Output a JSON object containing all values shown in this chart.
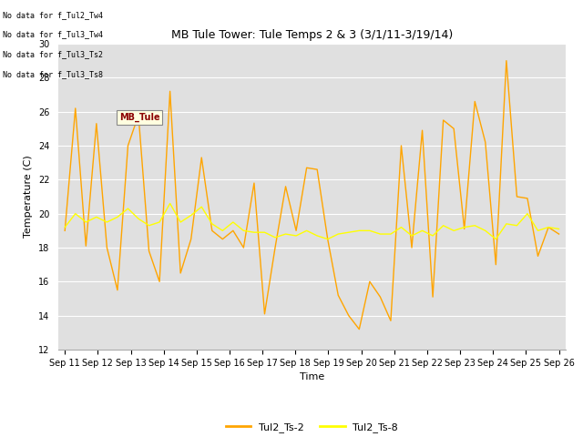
{
  "title": "MB Tule Tower: Tule Temps 2 & 3 (3/1/11-3/19/14)",
  "xlabel": "Time",
  "ylabel": "Temperature (C)",
  "ylim": [
    12,
    30
  ],
  "yticks": [
    12,
    14,
    16,
    18,
    20,
    22,
    24,
    26,
    28,
    30
  ],
  "background_color": "#ffffff",
  "plot_bg_color": "#e0e0e0",
  "line1_color": "#FFA500",
  "line2_color": "#FFFF00",
  "line1_label": "Tul2_Ts-2",
  "line2_label": "Tul2_Ts-8",
  "annotations": [
    "No data for f_Tul2_Tw4",
    "No data for f_Tul3_Tw4",
    "No data for f_Tul3_Ts2",
    "No data for f_Tul3_Ts8"
  ],
  "tooltip_text": "MB_Tule",
  "xtick_labels": [
    "Sep 11",
    "Sep 12",
    "Sep 13",
    "Sep 14",
    "Sep 15",
    "Sep 16",
    "Sep 17",
    "Sep 18",
    "Sep 19",
    "Sep 20",
    "Sep 21",
    "Sep 22",
    "Sep 23",
    "Sep 24",
    "Sep 25",
    "Sep 26"
  ],
  "ts2_y": [
    19.0,
    26.2,
    18.1,
    25.3,
    18.0,
    15.5,
    24.0,
    25.8,
    17.8,
    16.0,
    27.2,
    16.5,
    18.5,
    23.3,
    19.0,
    18.5,
    19.0,
    18.0,
    21.8,
    14.1,
    18.0,
    21.6,
    19.0,
    22.7,
    22.6,
    18.5,
    15.2,
    14.0,
    13.2,
    16.0,
    15.1,
    13.7,
    24.0,
    18.0,
    24.9,
    15.1,
    25.5,
    25.0,
    19.1,
    26.6,
    24.2,
    17.0,
    29.0,
    21.0,
    20.9,
    17.5,
    19.2,
    18.8
  ],
  "ts8_y": [
    19.2,
    20.0,
    19.5,
    19.8,
    19.5,
    19.8,
    20.3,
    19.7,
    19.3,
    19.5,
    20.6,
    19.5,
    19.9,
    20.4,
    19.4,
    19.0,
    19.5,
    19.0,
    18.9,
    18.9,
    18.6,
    18.8,
    18.7,
    19.0,
    18.7,
    18.5,
    18.8,
    18.9,
    19.0,
    19.0,
    18.8,
    18.8,
    19.2,
    18.7,
    19.0,
    18.7,
    19.3,
    19.0,
    19.2,
    19.3,
    19.0,
    18.5,
    19.4,
    19.3,
    20.0,
    19.0,
    19.2,
    19.1
  ]
}
